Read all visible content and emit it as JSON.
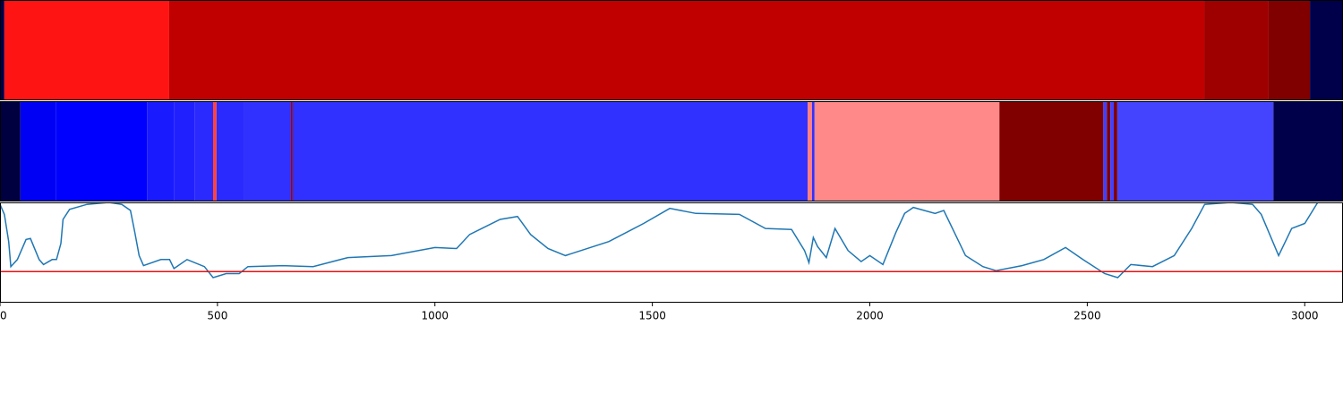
{
  "chart_data": [
    {
      "type": "segments",
      "xlim": [
        0,
        3088
      ],
      "segments": [
        {
          "start": 0,
          "end": 10,
          "color": "#00004a"
        },
        {
          "start": 10,
          "end": 389,
          "color": "#ff1414"
        },
        {
          "start": 389,
          "end": 2769,
          "color": "#c00000"
        },
        {
          "start": 2769,
          "end": 2917,
          "color": "#9e0000"
        },
        {
          "start": 2917,
          "end": 3012,
          "color": "#800000"
        },
        {
          "start": 3012,
          "end": 3088,
          "color": "#00004a"
        }
      ]
    },
    {
      "type": "segments",
      "xlim": [
        0,
        3088
      ],
      "segments": [
        {
          "start": 0,
          "end": 47,
          "color": "#000040"
        },
        {
          "start": 47,
          "end": 128,
          "color": "#0000f4"
        },
        {
          "start": 128,
          "end": 338,
          "color": "#0000ff"
        },
        {
          "start": 338,
          "end": 401,
          "color": "#1a1aff"
        },
        {
          "start": 401,
          "end": 447,
          "color": "#2020ff"
        },
        {
          "start": 447,
          "end": 490,
          "color": "#2a2aff"
        },
        {
          "start": 490,
          "end": 498,
          "color": "#ff4040"
        },
        {
          "start": 498,
          "end": 560,
          "color": "#2a2aff"
        },
        {
          "start": 560,
          "end": 669,
          "color": "#3030ff"
        },
        {
          "start": 669,
          "end": 673,
          "color": "#a00000"
        },
        {
          "start": 673,
          "end": 1857,
          "color": "#3030ff"
        },
        {
          "start": 1857,
          "end": 1867,
          "color": "#ff8080"
        },
        {
          "start": 1867,
          "end": 1873,
          "color": "#3030ff"
        },
        {
          "start": 1873,
          "end": 2298,
          "color": "#ff8888"
        },
        {
          "start": 2298,
          "end": 2537,
          "color": "#800000"
        },
        {
          "start": 2537,
          "end": 2545,
          "color": "#4040ff"
        },
        {
          "start": 2545,
          "end": 2553,
          "color": "#800000"
        },
        {
          "start": 2553,
          "end": 2561,
          "color": "#4040ff"
        },
        {
          "start": 2561,
          "end": 2569,
          "color": "#800000"
        },
        {
          "start": 2569,
          "end": 2928,
          "color": "#4444ff"
        },
        {
          "start": 2928,
          "end": 3088,
          "color": "#00004a"
        }
      ]
    },
    {
      "type": "line",
      "xlim": [
        0,
        3088
      ],
      "ylim": [
        0,
        100
      ],
      "xticks": [
        0,
        500,
        1000,
        1500,
        2000,
        2500,
        3000
      ],
      "hline": 31,
      "hline_color": "#e81010",
      "series": [
        {
          "color": "#1f77b4",
          "x": [
            0,
            10,
            20,
            25,
            40,
            60,
            70,
            90,
            100,
            120,
            130,
            140,
            145,
            160,
            200,
            250,
            280,
            300,
            310,
            320,
            330,
            370,
            390,
            400,
            430,
            470,
            490,
            520,
            550,
            570,
            650,
            720,
            800,
            900,
            1000,
            1050,
            1080,
            1150,
            1190,
            1220,
            1260,
            1300,
            1400,
            1480,
            1540,
            1600,
            1700,
            1760,
            1820,
            1850,
            1860,
            1870,
            1880,
            1900,
            1920,
            1950,
            1980,
            2000,
            2030,
            2060,
            2080,
            2100,
            2150,
            2170,
            2190,
            2220,
            2260,
            2290,
            2350,
            2400,
            2450,
            2490,
            2540,
            2570,
            2600,
            2650,
            2700,
            2740,
            2770,
            2830,
            2880,
            2900,
            2940,
            2970,
            3000,
            3030
          ],
          "values": [
            98,
            88,
            61,
            36,
            43,
            63,
            64,
            43,
            38,
            43,
            43,
            59,
            83,
            93,
            98,
            100,
            98,
            92,
            70,
            47,
            37,
            43,
            43,
            34,
            43,
            36,
            25,
            29,
            29,
            36,
            37,
            36,
            45,
            47,
            55,
            54,
            68,
            83,
            86,
            68,
            54,
            47,
            61,
            79,
            94,
            89,
            88,
            74,
            73,
            52,
            40,
            65,
            56,
            45,
            74,
            52,
            41,
            47,
            38,
            70,
            89,
            95,
            89,
            92,
            74,
            47,
            36,
            32,
            37,
            43,
            55,
            43,
            29,
            25,
            38,
            36,
            47,
            74,
            98,
            100,
            98,
            88,
            47,
            74,
            79,
            100
          ]
        }
      ]
    }
  ]
}
